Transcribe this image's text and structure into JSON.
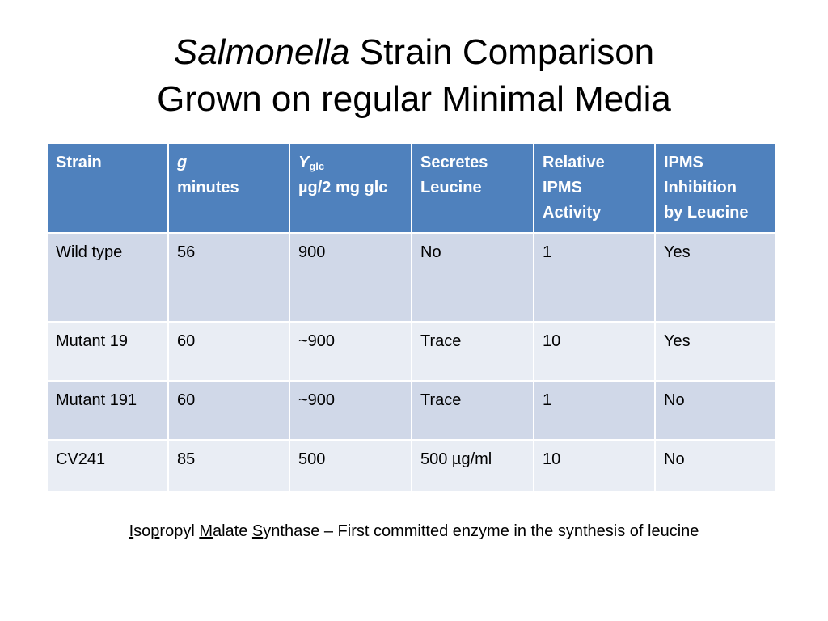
{
  "title": {
    "line1_italic": "Salmonella",
    "line1_rest": " Strain Comparison",
    "line2": "Grown on regular Minimal Media"
  },
  "table": {
    "headers": [
      {
        "line1": "Strain",
        "line2": ""
      },
      {
        "line1": "g",
        "line2": "minutes"
      },
      {
        "line1_main": "Y",
        "line1_sub": "glc",
        "line2": "µg/2 mg glc"
      },
      {
        "line1": "Secretes",
        "line2": "Leucine"
      },
      {
        "line1": "Relative",
        "line2": "IPMS",
        "line3": "Activity"
      },
      {
        "line1": "IPMS",
        "line2": "Inhibition",
        "line3": "by Leucine"
      }
    ],
    "rows": [
      [
        "Wild type",
        "56",
        "900",
        "No",
        "1",
        "Yes"
      ],
      [
        "Mutant 19",
        "60",
        "~900",
        "Trace",
        "10",
        "Yes"
      ],
      [
        "Mutant 191",
        "60",
        "~900",
        "Trace",
        "1",
        "No"
      ],
      [
        "CV241",
        "85",
        "500",
        "500 µg/ml",
        "10",
        "No"
      ]
    ]
  },
  "footer": {
    "p1_u": "I",
    "p1": "so",
    "p2_u": "p",
    "p2": "ropyl ",
    "p3_u": "M",
    "p3": "alate ",
    "p4_u": "S",
    "p4": "ynthase – First committed enzyme in the synthesis of leucine"
  }
}
